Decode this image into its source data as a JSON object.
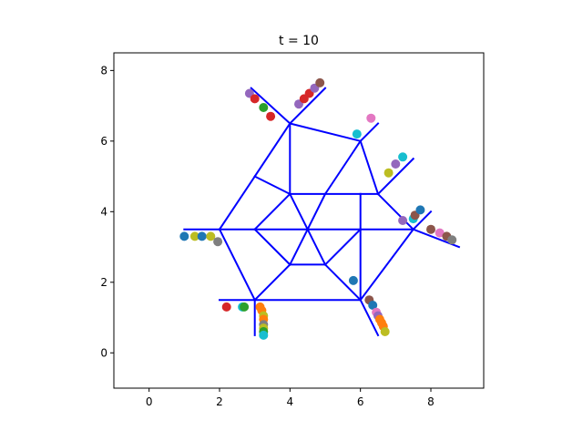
{
  "chart_data": {
    "type": "scatter",
    "title": "t = 10",
    "xlabel": "",
    "ylabel": "",
    "xlim": [
      -1.0,
      9.5
    ],
    "ylim": [
      -1.0,
      8.5
    ],
    "xticks": [
      0,
      2,
      4,
      6,
      8
    ],
    "yticks": [
      0,
      2,
      4,
      6,
      8
    ],
    "grid": false,
    "legend": "none",
    "network_color": "#0000ff",
    "network_edges": [
      [
        [
          3.0,
          0.5
        ],
        [
          3.0,
          1.5
        ]
      ],
      [
        [
          2.0,
          1.5
        ],
        [
          3.0,
          1.5
        ]
      ],
      [
        [
          3.0,
          1.5
        ],
        [
          2.0,
          3.5
        ]
      ],
      [
        [
          3.0,
          1.5
        ],
        [
          4.0,
          2.5
        ]
      ],
      [
        [
          3.0,
          1.5
        ],
        [
          6.0,
          1.5
        ]
      ],
      [
        [
          1.0,
          3.5
        ],
        [
          2.0,
          3.5
        ]
      ],
      [
        [
          2.0,
          3.5
        ],
        [
          3.0,
          3.5
        ]
      ],
      [
        [
          2.0,
          3.5
        ],
        [
          3.0,
          5.0
        ]
      ],
      [
        [
          3.0,
          3.5
        ],
        [
          4.0,
          2.5
        ]
      ],
      [
        [
          3.0,
          3.5
        ],
        [
          4.0,
          4.5
        ]
      ],
      [
        [
          3.0,
          3.5
        ],
        [
          4.5,
          3.5
        ]
      ],
      [
        [
          3.0,
          5.0
        ],
        [
          4.0,
          4.5
        ]
      ],
      [
        [
          3.0,
          5.0
        ],
        [
          4.0,
          6.5
        ]
      ],
      [
        [
          2.9,
          7.5
        ],
        [
          4.0,
          6.5
        ]
      ],
      [
        [
          4.0,
          6.5
        ],
        [
          5.0,
          7.5
        ]
      ],
      [
        [
          4.0,
          6.5
        ],
        [
          6.0,
          6.0
        ]
      ],
      [
        [
          4.0,
          6.5
        ],
        [
          4.0,
          4.5
        ]
      ],
      [
        [
          4.0,
          4.5
        ],
        [
          5.0,
          4.5
        ]
      ],
      [
        [
          4.0,
          4.5
        ],
        [
          4.5,
          3.5
        ]
      ],
      [
        [
          4.0,
          2.5
        ],
        [
          4.5,
          3.5
        ]
      ],
      [
        [
          4.0,
          2.5
        ],
        [
          5.0,
          2.5
        ]
      ],
      [
        [
          4.5,
          3.5
        ],
        [
          5.0,
          4.5
        ]
      ],
      [
        [
          4.5,
          3.5
        ],
        [
          5.0,
          2.5
        ]
      ],
      [
        [
          4.5,
          3.5
        ],
        [
          6.0,
          3.5
        ]
      ],
      [
        [
          5.0,
          4.5
        ],
        [
          6.0,
          4.5
        ]
      ],
      [
        [
          5.0,
          4.5
        ],
        [
          6.0,
          6.0
        ]
      ],
      [
        [
          6.0,
          6.0
        ],
        [
          6.5,
          6.5
        ]
      ],
      [
        [
          6.0,
          6.0
        ],
        [
          6.5,
          4.5
        ]
      ],
      [
        [
          6.0,
          4.5
        ],
        [
          6.5,
          4.5
        ]
      ],
      [
        [
          6.0,
          4.5
        ],
        [
          6.0,
          3.5
        ]
      ],
      [
        [
          6.5,
          4.5
        ],
        [
          7.5,
          5.5
        ]
      ],
      [
        [
          6.5,
          4.5
        ],
        [
          7.5,
          3.5
        ]
      ],
      [
        [
          5.0,
          2.5
        ],
        [
          6.0,
          3.5
        ]
      ],
      [
        [
          5.0,
          2.5
        ],
        [
          6.0,
          1.5
        ]
      ],
      [
        [
          6.0,
          3.5
        ],
        [
          7.5,
          3.5
        ]
      ],
      [
        [
          6.0,
          3.5
        ],
        [
          6.0,
          1.5
        ]
      ],
      [
        [
          6.0,
          1.5
        ],
        [
          7.5,
          3.5
        ]
      ],
      [
        [
          6.0,
          1.5
        ],
        [
          6.5,
          0.5
        ]
      ],
      [
        [
          7.5,
          3.5
        ],
        [
          8.0,
          4.0
        ]
      ],
      [
        [
          7.5,
          3.5
        ],
        [
          8.8,
          3.0
        ]
      ]
    ],
    "points": [
      {
        "x": 1.0,
        "y": 3.3,
        "color": "#1f77b4"
      },
      {
        "x": 1.3,
        "y": 3.3,
        "color": "#bcbd22"
      },
      {
        "x": 1.5,
        "y": 3.3,
        "color": "#1f77b4"
      },
      {
        "x": 1.75,
        "y": 3.3,
        "color": "#bcbd22"
      },
      {
        "x": 1.95,
        "y": 3.15,
        "color": "#7f7f7f"
      },
      {
        "x": 2.2,
        "y": 1.3,
        "color": "#d62728"
      },
      {
        "x": 2.65,
        "y": 1.3,
        "color": "#17becf"
      },
      {
        "x": 2.7,
        "y": 1.3,
        "color": "#2ca02c"
      },
      {
        "x": 3.15,
        "y": 1.3,
        "color": "#ff7f0e"
      },
      {
        "x": 3.2,
        "y": 1.2,
        "color": "#ff7f0e"
      },
      {
        "x": 3.25,
        "y": 1.05,
        "color": "#bcbd22"
      },
      {
        "x": 3.25,
        "y": 0.95,
        "color": "#ff7f0e"
      },
      {
        "x": 3.25,
        "y": 0.8,
        "color": "#7f7f7f"
      },
      {
        "x": 3.25,
        "y": 0.7,
        "color": "#bcbd22"
      },
      {
        "x": 3.25,
        "y": 0.6,
        "color": "#2ca02c"
      },
      {
        "x": 3.25,
        "y": 0.5,
        "color": "#17becf"
      },
      {
        "x": 2.85,
        "y": 7.35,
        "color": "#9467bd"
      },
      {
        "x": 3.0,
        "y": 7.2,
        "color": "#d62728"
      },
      {
        "x": 3.25,
        "y": 6.95,
        "color": "#2ca02c"
      },
      {
        "x": 3.45,
        "y": 6.7,
        "color": "#d62728"
      },
      {
        "x": 4.25,
        "y": 7.05,
        "color": "#9467bd"
      },
      {
        "x": 4.4,
        "y": 7.2,
        "color": "#d62728"
      },
      {
        "x": 4.55,
        "y": 7.35,
        "color": "#d62728"
      },
      {
        "x": 4.7,
        "y": 7.5,
        "color": "#9467bd"
      },
      {
        "x": 4.85,
        "y": 7.65,
        "color": "#8c564b"
      },
      {
        "x": 5.9,
        "y": 6.2,
        "color": "#17becf"
      },
      {
        "x": 6.3,
        "y": 6.65,
        "color": "#e377c2"
      },
      {
        "x": 6.8,
        "y": 5.1,
        "color": "#bcbd22"
      },
      {
        "x": 7.0,
        "y": 5.35,
        "color": "#9467bd"
      },
      {
        "x": 7.2,
        "y": 5.55,
        "color": "#17becf"
      },
      {
        "x": 5.8,
        "y": 2.05,
        "color": "#1f77b4"
      },
      {
        "x": 6.25,
        "y": 1.5,
        "color": "#8c564b"
      },
      {
        "x": 6.35,
        "y": 1.35,
        "color": "#1f77b4"
      },
      {
        "x": 6.45,
        "y": 1.15,
        "color": "#e377c2"
      },
      {
        "x": 6.5,
        "y": 1.05,
        "color": "#9467bd"
      },
      {
        "x": 6.55,
        "y": 0.95,
        "color": "#ff7f0e"
      },
      {
        "x": 6.6,
        "y": 0.85,
        "color": "#ff7f0e"
      },
      {
        "x": 6.65,
        "y": 0.75,
        "color": "#ff7f0e"
      },
      {
        "x": 6.7,
        "y": 0.6,
        "color": "#bcbd22"
      },
      {
        "x": 7.2,
        "y": 3.75,
        "color": "#9467bd"
      },
      {
        "x": 7.5,
        "y": 3.8,
        "color": "#17becf"
      },
      {
        "x": 7.55,
        "y": 3.9,
        "color": "#8c564b"
      },
      {
        "x": 7.7,
        "y": 4.05,
        "color": "#1f77b4"
      },
      {
        "x": 8.0,
        "y": 3.5,
        "color": "#8c564b"
      },
      {
        "x": 8.25,
        "y": 3.4,
        "color": "#e377c2"
      },
      {
        "x": 8.45,
        "y": 3.3,
        "color": "#8c564b"
      },
      {
        "x": 8.6,
        "y": 3.2,
        "color": "#7f7f7f"
      }
    ]
  }
}
